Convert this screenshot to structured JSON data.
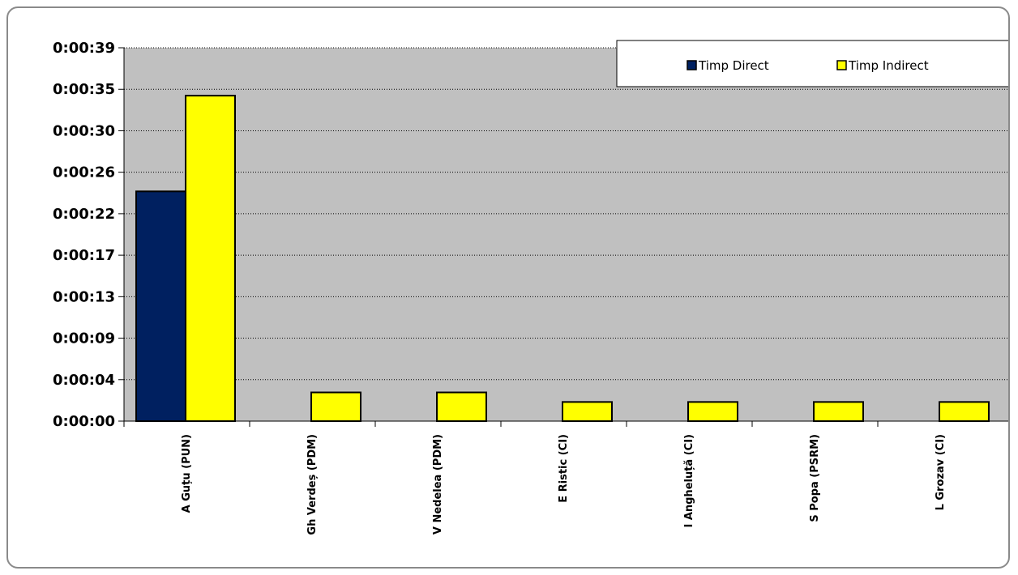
{
  "chart_data": {
    "type": "bar",
    "categories": [
      "A Guțu (PUN)",
      "Gh Verdeș (PDM)",
      "V Nedelea (PDM)",
      "E Ristic (CI)",
      "I Angheluță (CI)",
      "S Popa (PSRM)",
      "L Grozav (CI)"
    ],
    "series": [
      {
        "name": "Timp Direct",
        "color": "#002060",
        "values": [
          24,
          0,
          0,
          0,
          0,
          0,
          0
        ]
      },
      {
        "name": "Timp Indirect",
        "color": "#ffff00",
        "values": [
          34,
          3,
          3,
          2,
          2,
          2,
          2
        ]
      }
    ],
    "y_ticks": [
      "0:00:00",
      "0:00:04",
      "0:00:09",
      "0:00:13",
      "0:00:17",
      "0:00:22",
      "0:00:26",
      "0:00:30",
      "0:00:35",
      "0:00:39"
    ],
    "ylim": [
      0,
      39
    ],
    "y_unit": "seconds",
    "grid": true,
    "plot_background": "#c0c0c0",
    "legend_position": "top-right",
    "title": "",
    "xlabel": "",
    "ylabel": ""
  }
}
